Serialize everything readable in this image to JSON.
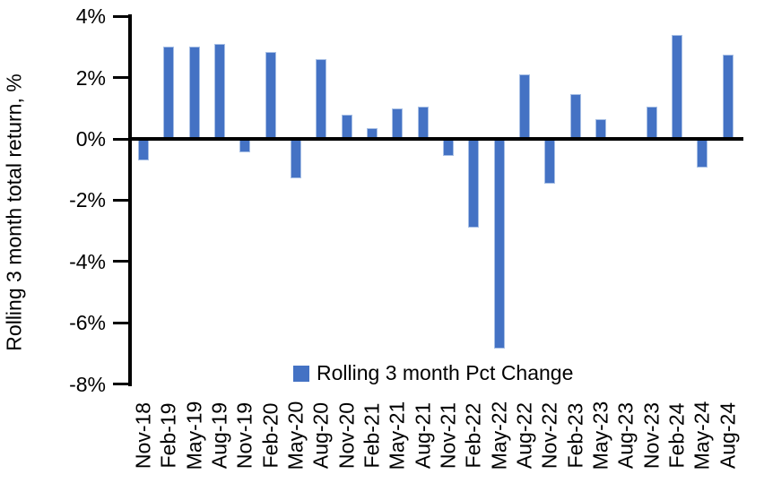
{
  "chart_data": {
    "type": "bar",
    "title": "",
    "xlabel": "",
    "ylabel": "Rolling 3 month total return, %",
    "legend": "Rolling 3 month Pct Change",
    "legend_position": "bottom-center",
    "grid": false,
    "ylim": [
      -8,
      4
    ],
    "ytick_values": [
      4,
      2,
      0,
      -2,
      -4,
      -6,
      -8
    ],
    "ytick_labels": [
      "4%",
      "2%",
      "0%",
      "-2%",
      "-4%",
      "-6%",
      "-8%"
    ],
    "categories": [
      "Nov-18",
      "Feb-19",
      "May-19",
      "Aug-19",
      "Nov-19",
      "Feb-20",
      "May-20",
      "Aug-20",
      "Nov-20",
      "Feb-21",
      "May-21",
      "Aug-21",
      "Nov-21",
      "Feb-22",
      "May-22",
      "Aug-22",
      "Nov-22",
      "Feb-23",
      "May-23",
      "Aug-23",
      "Nov-23",
      "Feb-24",
      "May-24",
      "Aug-24"
    ],
    "values": [
      -0.7,
      3.0,
      3.0,
      3.1,
      -0.45,
      2.85,
      -1.3,
      2.6,
      0.8,
      0.35,
      1.0,
      1.05,
      -0.55,
      -2.9,
      -6.85,
      2.1,
      -1.45,
      1.45,
      0.65,
      0.0,
      1.05,
      3.4,
      -0.95,
      2.75
    ],
    "colors": {
      "bar_fill": "#4472C4",
      "bar_border": "#A7BFE5",
      "axis": "#000000",
      "text": "#000000",
      "background": "#FFFFFF"
    }
  }
}
